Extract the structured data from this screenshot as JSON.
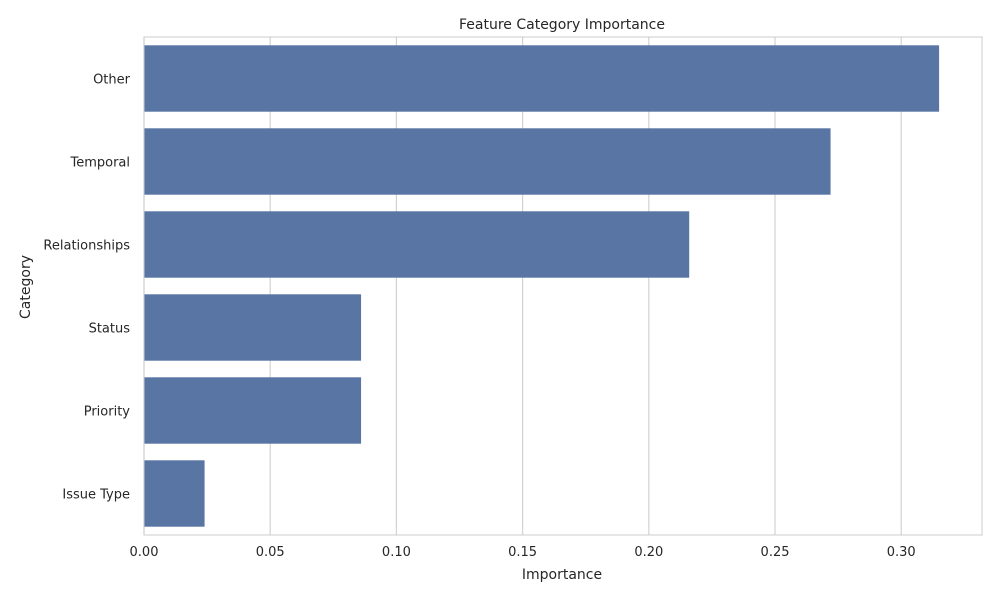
{
  "chart_data": {
    "type": "bar",
    "orientation": "horizontal",
    "title": "Feature Category Importance",
    "xlabel": "Importance",
    "ylabel": "Category",
    "categories": [
      "Other",
      "Temporal",
      "Relationships",
      "Status",
      "Priority",
      "Issue Type"
    ],
    "values": [
      0.315,
      0.272,
      0.216,
      0.086,
      0.086,
      0.024
    ],
    "xlim": [
      0,
      0.332
    ],
    "xticks": [
      0.0,
      0.05,
      0.1,
      0.15,
      0.2,
      0.25,
      0.3
    ],
    "xtick_labels": [
      "0.00",
      "0.05",
      "0.10",
      "0.15",
      "0.20",
      "0.25",
      "0.30"
    ],
    "grid": "vertical",
    "legend": "none",
    "colors": {
      "bar": "#5975a4",
      "grid": "#d2d2d2",
      "frame": "#cccccc",
      "text": "#262626"
    }
  }
}
